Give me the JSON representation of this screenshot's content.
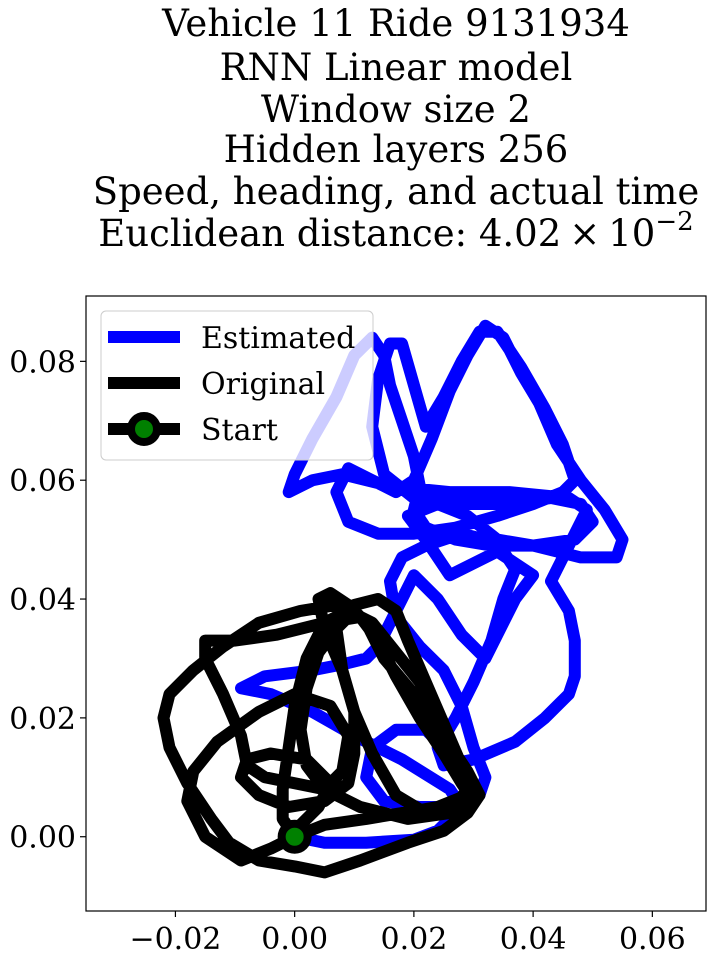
{
  "chart_data": {
    "type": "line",
    "title_lines": [
      "Vehicle 11 Ride 9131934",
      "RNN Linear model",
      "Window size 2",
      "Hidden layers 256",
      "Speed, heading, and actual time"
    ],
    "title_metric_prefix": "Euclidean distance: 4.02",
    "title_metric_times": "×",
    "title_metric_base": "10",
    "title_metric_exp": "−2",
    "xlabel": "",
    "ylabel": "",
    "xlim": [
      -0.035,
      0.069
    ],
    "ylim": [
      -0.0125,
      0.091
    ],
    "xticks": [
      -0.02,
      0.0,
      0.02,
      0.04,
      0.06
    ],
    "xtick_labels": [
      "−0.02",
      "0.00",
      "0.02",
      "0.04",
      "0.06"
    ],
    "yticks": [
      0.0,
      0.02,
      0.04,
      0.06,
      0.08
    ],
    "ytick_labels": [
      "0.00",
      "0.02",
      "0.04",
      "0.06",
      "0.08"
    ],
    "grid": false,
    "legend_position": "top-left",
    "series": [
      {
        "name": "Estimated",
        "color": "#0000ff",
        "points": [
          [
            0.0,
            0.0
          ],
          [
            0.005,
            -0.001
          ],
          [
            0.012,
            -0.001
          ],
          [
            0.02,
            -0.0005
          ],
          [
            0.024,
            0.001
          ],
          [
            0.026,
            0.003
          ],
          [
            0.028,
            0.005
          ],
          [
            0.026,
            0.008
          ],
          [
            0.018,
            0.013
          ],
          [
            0.01,
            0.017
          ],
          [
            0.003,
            0.021
          ],
          [
            -0.004,
            0.024
          ],
          [
            -0.009,
            0.025
          ],
          [
            -0.005,
            0.027
          ],
          [
            0.003,
            0.028
          ],
          [
            0.008,
            0.029
          ],
          [
            0.012,
            0.03
          ],
          [
            0.014,
            0.032
          ],
          [
            0.018,
            0.04
          ],
          [
            0.02,
            0.044
          ],
          [
            0.024,
            0.04
          ],
          [
            0.028,
            0.034
          ],
          [
            0.032,
            0.03
          ],
          [
            0.034,
            0.034
          ],
          [
            0.037,
            0.04
          ],
          [
            0.04,
            0.044
          ],
          [
            0.037,
            0.046
          ],
          [
            0.034,
            0.048
          ],
          [
            0.03,
            0.046
          ],
          [
            0.026,
            0.044
          ],
          [
            0.022,
            0.05
          ],
          [
            0.019,
            0.054
          ],
          [
            0.024,
            0.056
          ],
          [
            0.029,
            0.054
          ],
          [
            0.034,
            0.05
          ],
          [
            0.04,
            0.049
          ],
          [
            0.048,
            0.047
          ],
          [
            0.054,
            0.047
          ],
          [
            0.055,
            0.05
          ],
          [
            0.052,
            0.055
          ],
          [
            0.048,
            0.06
          ],
          [
            0.044,
            0.066
          ],
          [
            0.041,
            0.073
          ],
          [
            0.038,
            0.078
          ],
          [
            0.035,
            0.084
          ],
          [
            0.032,
            0.086
          ],
          [
            0.029,
            0.081
          ],
          [
            0.026,
            0.075
          ],
          [
            0.023,
            0.067
          ],
          [
            0.02,
            0.06
          ],
          [
            0.017,
            0.058
          ],
          [
            0.013,
            0.06
          ],
          [
            0.009,
            0.062
          ],
          [
            0.007,
            0.058
          ],
          [
            0.009,
            0.053
          ],
          [
            0.014,
            0.051
          ],
          [
            0.02,
            0.051
          ],
          [
            0.027,
            0.052
          ],
          [
            0.034,
            0.054
          ],
          [
            0.04,
            0.056
          ],
          [
            0.045,
            0.058
          ],
          [
            0.047,
            0.06
          ],
          [
            0.045,
            0.066
          ],
          [
            0.042,
            0.072
          ],
          [
            0.038,
            0.079
          ],
          [
            0.034,
            0.085
          ],
          [
            0.031,
            0.085
          ],
          [
            0.028,
            0.08
          ],
          [
            0.025,
            0.074
          ],
          [
            0.022,
            0.069
          ],
          [
            0.02,
            0.076
          ],
          [
            0.018,
            0.083
          ],
          [
            0.016,
            0.083
          ],
          [
            0.014,
            0.077
          ],
          [
            0.013,
            0.069
          ],
          [
            0.015,
            0.061
          ],
          [
            0.02,
            0.057
          ],
          [
            0.027,
            0.056
          ],
          [
            0.035,
            0.056
          ],
          [
            0.043,
            0.057
          ],
          [
            0.048,
            0.056
          ],
          [
            0.05,
            0.053
          ],
          [
            0.047,
            0.05
          ],
          [
            0.04,
            0.049
          ],
          [
            0.033,
            0.049
          ],
          [
            0.027,
            0.05
          ],
          [
            0.022,
            0.052
          ],
          [
            0.02,
            0.055
          ],
          [
            0.021,
            0.059
          ],
          [
            0.02,
            0.064
          ],
          [
            0.018,
            0.07
          ],
          [
            0.016,
            0.076
          ],
          [
            0.015,
            0.081
          ],
          [
            0.013,
            0.084
          ],
          [
            0.01,
            0.081
          ],
          [
            0.007,
            0.074
          ],
          [
            0.003,
            0.067
          ],
          [
            0.0,
            0.061
          ],
          [
            -0.001,
            0.058
          ],
          [
            0.003,
            0.06
          ],
          [
            0.008,
            0.061
          ],
          [
            0.016,
            0.059
          ],
          [
            0.026,
            0.058
          ],
          [
            0.036,
            0.058
          ],
          [
            0.046,
            0.057
          ],
          [
            0.049,
            0.055
          ],
          [
            0.046,
            0.049
          ],
          [
            0.043,
            0.043
          ],
          [
            0.046,
            0.038
          ],
          [
            0.047,
            0.033
          ],
          [
            0.047,
            0.027
          ],
          [
            0.046,
            0.024
          ],
          [
            0.042,
            0.02
          ],
          [
            0.037,
            0.016
          ],
          [
            0.03,
            0.013
          ],
          [
            0.025,
            0.012
          ],
          [
            0.024,
            0.015
          ],
          [
            0.027,
            0.02
          ],
          [
            0.03,
            0.026
          ],
          [
            0.033,
            0.033
          ],
          [
            0.035,
            0.04
          ],
          [
            0.037,
            0.045
          ],
          [
            0.035,
            0.048
          ],
          [
            0.032,
            0.05
          ],
          [
            0.028,
            0.051
          ],
          [
            0.022,
            0.049
          ],
          [
            0.018,
            0.047
          ],
          [
            0.016,
            0.043
          ],
          [
            0.017,
            0.037
          ],
          [
            0.021,
            0.032
          ],
          [
            0.025,
            0.028
          ],
          [
            0.028,
            0.022
          ],
          [
            0.03,
            0.015
          ],
          [
            0.032,
            0.01
          ],
          [
            0.031,
            0.007
          ],
          [
            0.027,
            0.005
          ],
          [
            0.021,
            0.005
          ],
          [
            0.015,
            0.006
          ],
          [
            0.012,
            0.01
          ],
          [
            0.013,
            0.015
          ],
          [
            0.017,
            0.018
          ],
          [
            0.022,
            0.018
          ],
          [
            0.025,
            0.015
          ],
          [
            0.026,
            0.012
          ]
        ]
      },
      {
        "name": "Original",
        "color": "#000000",
        "points": [
          [
            0.0,
            0.0
          ],
          [
            0.005,
            0.002
          ],
          [
            0.012,
            0.003
          ],
          [
            0.018,
            0.004
          ],
          [
            0.024,
            0.005
          ],
          [
            0.029,
            0.007
          ],
          [
            0.028,
            0.012
          ],
          [
            0.025,
            0.019
          ],
          [
            0.021,
            0.026
          ],
          [
            0.017,
            0.031
          ],
          [
            0.013,
            0.036
          ],
          [
            0.009,
            0.038
          ],
          [
            0.005,
            0.036
          ],
          [
            0.002,
            0.03
          ],
          [
            0.0,
            0.022
          ],
          [
            -0.001,
            0.015
          ],
          [
            -0.002,
            0.008
          ],
          [
            -0.002,
            0.003
          ],
          [
            0.0,
            0.0
          ],
          [
            -0.004,
            -0.002
          ],
          [
            -0.009,
            -0.004
          ],
          [
            -0.015,
            0.0
          ],
          [
            -0.018,
            0.006
          ],
          [
            -0.017,
            0.011
          ],
          [
            -0.013,
            0.016
          ],
          [
            -0.006,
            0.021
          ],
          [
            0.0,
            0.024
          ],
          [
            0.006,
            0.022
          ],
          [
            0.009,
            0.017
          ],
          [
            0.008,
            0.011
          ],
          [
            0.005,
            0.008
          ],
          [
            0.0,
            0.009
          ],
          [
            -0.005,
            0.01
          ],
          [
            -0.008,
            0.012
          ],
          [
            -0.009,
            0.017
          ],
          [
            -0.012,
            0.024
          ],
          [
            -0.015,
            0.03
          ],
          [
            -0.015,
            0.033
          ],
          [
            -0.01,
            0.033
          ],
          [
            -0.003,
            0.034
          ],
          [
            0.005,
            0.036
          ],
          [
            0.011,
            0.037
          ],
          [
            0.014,
            0.033
          ],
          [
            0.017,
            0.027
          ],
          [
            0.021,
            0.02
          ],
          [
            0.025,
            0.014
          ],
          [
            0.028,
            0.009
          ],
          [
            0.03,
            0.006
          ],
          [
            0.027,
            0.004
          ],
          [
            0.022,
            0.004
          ],
          [
            0.017,
            0.007
          ],
          [
            0.013,
            0.014
          ],
          [
            0.01,
            0.021
          ],
          [
            0.008,
            0.028
          ],
          [
            0.007,
            0.035
          ],
          [
            0.01,
            0.039
          ],
          [
            0.014,
            0.04
          ],
          [
            0.017,
            0.038
          ],
          [
            0.019,
            0.033
          ],
          [
            0.022,
            0.026
          ],
          [
            0.025,
            0.019
          ],
          [
            0.028,
            0.012
          ],
          [
            0.029,
            0.008
          ],
          [
            0.026,
            0.004
          ],
          [
            0.019,
            0.003
          ],
          [
            0.011,
            0.005
          ],
          [
            0.005,
            0.008
          ],
          [
            0.002,
            0.012
          ],
          [
            0.001,
            0.018
          ],
          [
            0.002,
            0.025
          ],
          [
            0.004,
            0.031
          ],
          [
            0.007,
            0.035
          ],
          [
            0.009,
            0.037
          ],
          [
            0.007,
            0.039
          ],
          [
            0.001,
            0.038
          ],
          [
            -0.006,
            0.036
          ],
          [
            -0.012,
            0.032
          ],
          [
            -0.017,
            0.028
          ],
          [
            -0.021,
            0.024
          ],
          [
            -0.022,
            0.02
          ],
          [
            -0.021,
            0.015
          ],
          [
            -0.018,
            0.009
          ],
          [
            -0.014,
            0.003
          ],
          [
            -0.011,
            -0.001
          ],
          [
            -0.006,
            -0.004
          ],
          [
            0.0,
            -0.005
          ],
          [
            0.005,
            -0.006
          ],
          [
            0.011,
            -0.004
          ],
          [
            0.019,
            -0.001
          ],
          [
            0.025,
            0.001
          ],
          [
            0.029,
            0.004
          ],
          [
            0.031,
            0.007
          ],
          [
            0.029,
            0.011
          ],
          [
            0.025,
            0.017
          ],
          [
            0.02,
            0.024
          ],
          [
            0.015,
            0.03
          ],
          [
            0.012,
            0.036
          ],
          [
            0.009,
            0.039
          ],
          [
            0.006,
            0.041
          ],
          [
            0.004,
            0.04
          ],
          [
            0.005,
            0.035
          ],
          [
            0.008,
            0.028
          ],
          [
            0.01,
            0.021
          ],
          [
            0.01,
            0.014
          ],
          [
            0.009,
            0.009
          ],
          [
            0.005,
            0.006
          ],
          [
            -0.001,
            0.005
          ],
          [
            -0.006,
            0.007
          ],
          [
            -0.009,
            0.01
          ],
          [
            -0.008,
            0.013
          ],
          [
            -0.004,
            0.014
          ],
          [
            0.002,
            0.013
          ],
          [
            0.006,
            0.009
          ],
          [
            0.004,
            0.005
          ],
          [
            0.001,
            0.002
          ],
          [
            0.0,
            0.0
          ]
        ]
      }
    ],
    "start_marker": {
      "name": "Start",
      "x": 0.0,
      "y": 0.0,
      "fill_color": "#008000",
      "edge_color": "#000000"
    }
  }
}
